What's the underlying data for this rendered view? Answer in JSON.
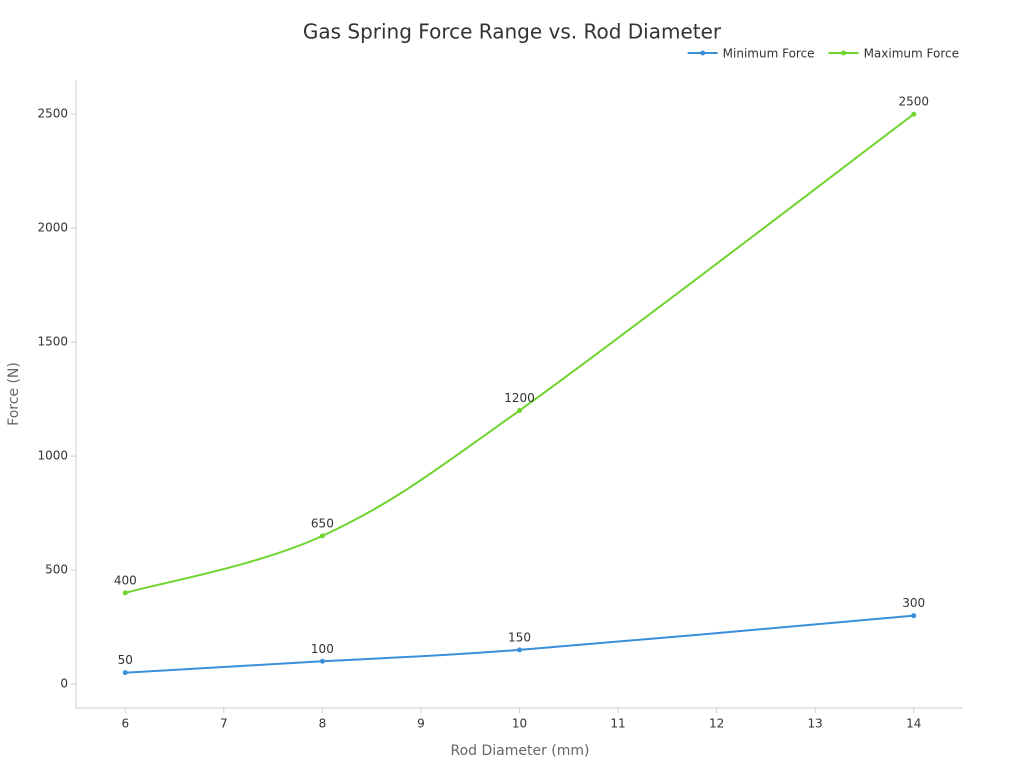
{
  "chart_data": {
    "type": "line",
    "title": "Gas Spring Force Range vs. Rod Diameter",
    "x_label": "Rod Diameter (mm)",
    "y_label": "Force (N)",
    "x": [
      6,
      8,
      10,
      14
    ],
    "series": [
      {
        "name": "Minimum Force",
        "color": "#3a8fd9",
        "values": [
          50,
          100,
          150,
          300
        ]
      },
      {
        "name": "Maximum Force",
        "color": "#6fd42e",
        "values": [
          400,
          650,
          1200,
          2500
        ]
      }
    ],
    "xlim": [
      5.5,
      14.5
    ],
    "xticks": [
      6,
      7,
      8,
      9,
      10,
      11,
      12,
      13,
      14
    ],
    "ylim": [
      -105,
      2650
    ],
    "yticks": [
      0,
      500,
      1000,
      1500,
      2000,
      2500
    ],
    "smooth": true,
    "data_labels": true,
    "legend": "top-right"
  }
}
